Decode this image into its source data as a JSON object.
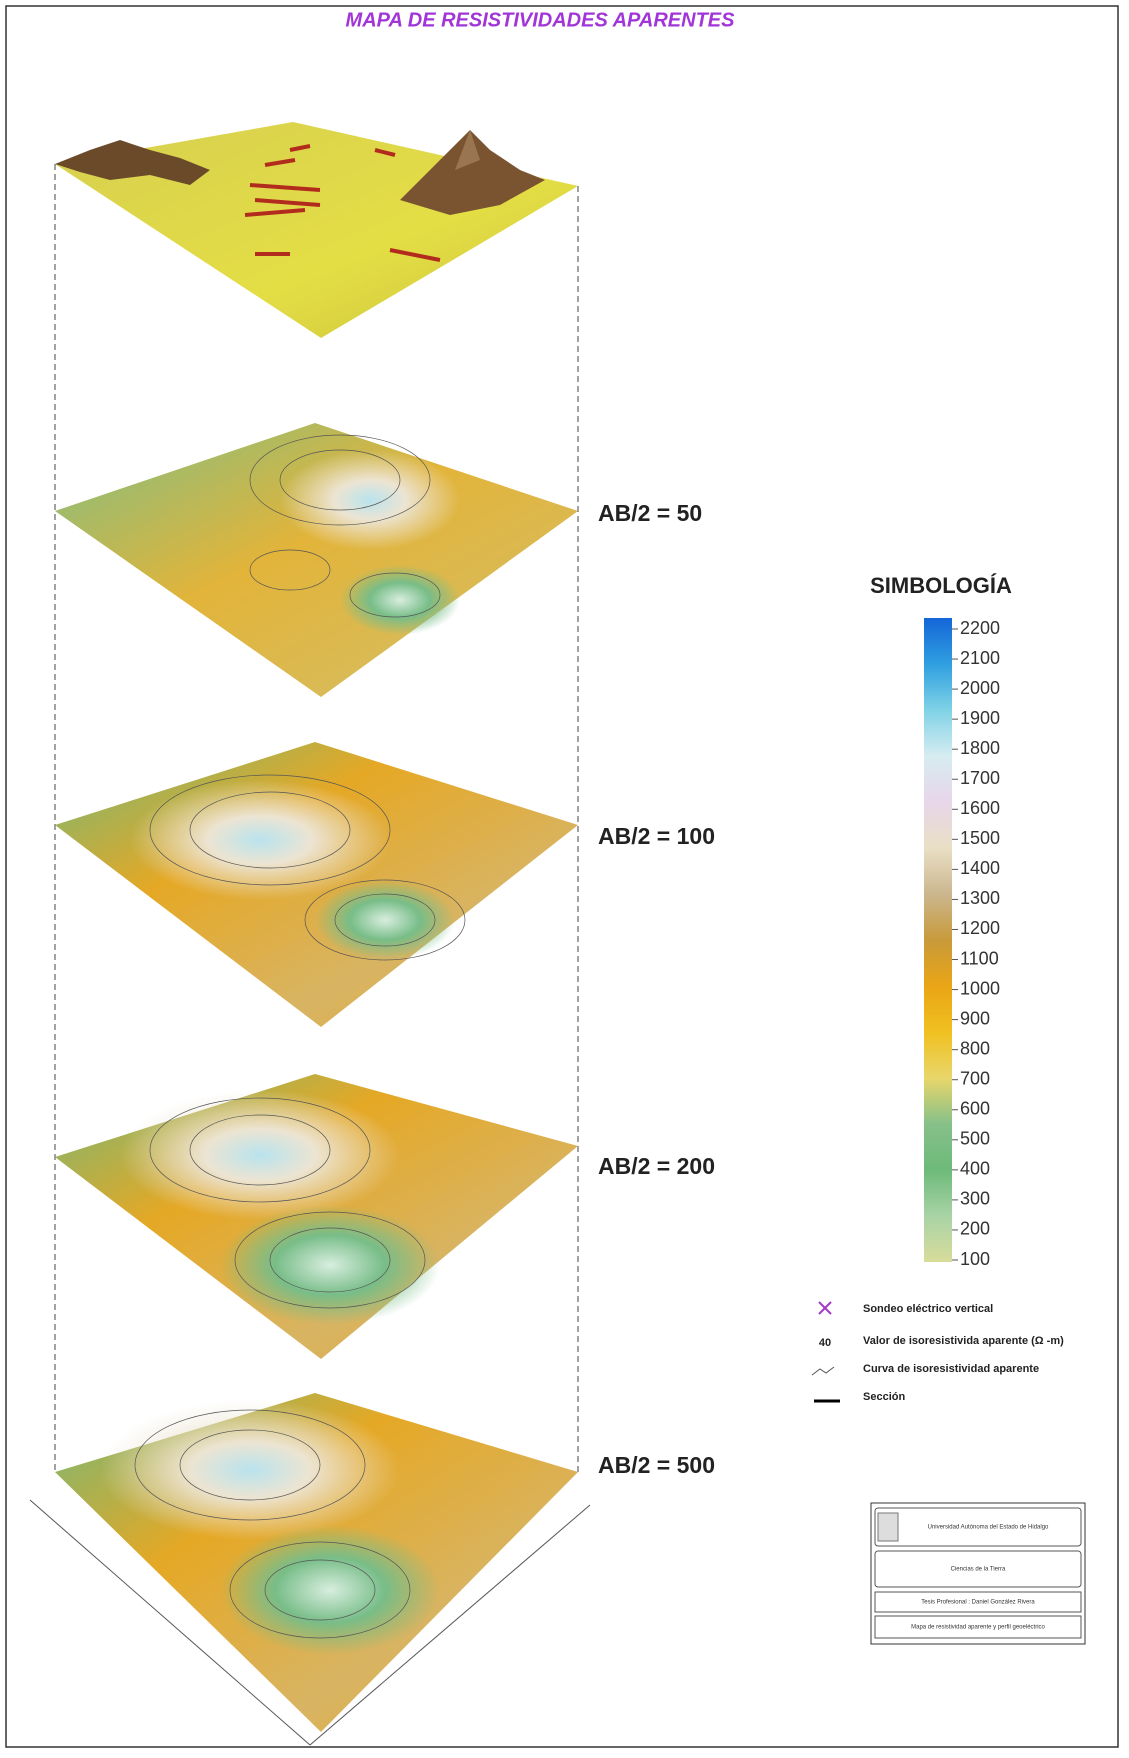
{
  "header": {
    "title": "MAPA DE RESISTIVIDADES APARENTES"
  },
  "panels": [
    {
      "label": "AB/2 = 50"
    },
    {
      "label": "AB/2 = 100"
    },
    {
      "label": "AB/2 = 200"
    },
    {
      "label": "AB/2 = 500"
    }
  ],
  "legend": {
    "title": "SIMBOLOGÍA",
    "colorbar": {
      "ticks": [
        100,
        200,
        300,
        400,
        500,
        600,
        700,
        800,
        900,
        1000,
        1100,
        1200,
        1300,
        1400,
        1500,
        1600,
        1700,
        1800,
        1900,
        2000,
        2100,
        2200
      ],
      "colors": [
        "#d8dc9a",
        "#a9d3a6",
        "#6dba7a",
        "#86c089",
        "#e8d66a",
        "#f0c020",
        "#e9a516",
        "#c89a3a",
        "#cbb78e",
        "#e9dfc5",
        "#e8d6ea",
        "#d6ecf1",
        "#7fd2e6",
        "#2f9fe0",
        "#1565d8"
      ]
    },
    "items": [
      {
        "label": "Sondeo eléctrico vertical"
      },
      {
        "symbol": "40",
        "label": "Valor de isoresistivida aparente (Ω -m)"
      },
      {
        "label": "Curva de isoresistividad aparente"
      },
      {
        "label": "Sección"
      }
    ]
  },
  "title_block": {
    "rows": [
      "Universidad Autónoma del Estado de Hidalgo",
      "Ciencias de la Tierra",
      "Tesis Profesional : Daniel González Rivera",
      "Mapa de resistividad aparente y perfil geoeléctrico"
    ]
  }
}
